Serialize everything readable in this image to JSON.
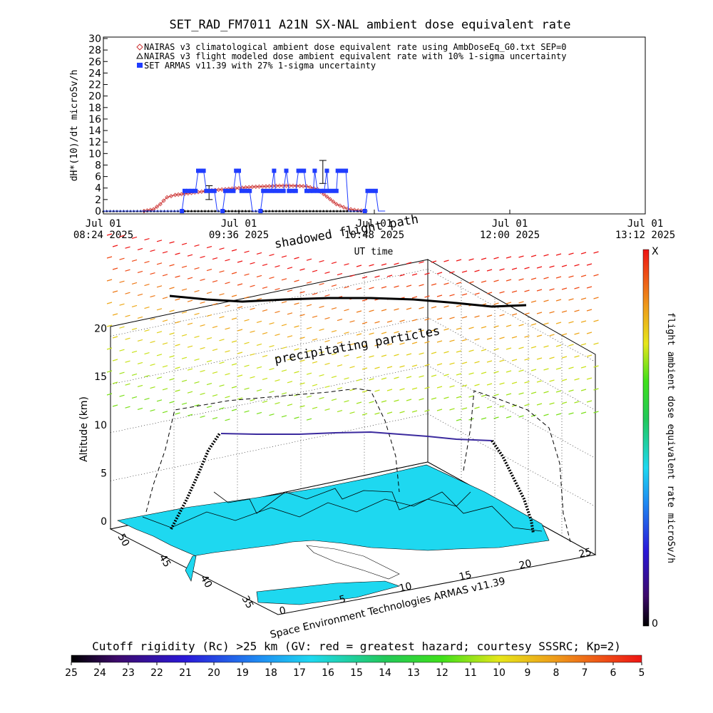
{
  "chart_data": [
    {
      "type": "line",
      "title": "SET_RAD_FM7011  A21N SX-NAL ambient dose equivalent rate",
      "xlabel": "UT time",
      "ylabel": "dH*(10)/dt microSv/h",
      "ylim": [
        0,
        30
      ],
      "yticks": [
        "0",
        "2",
        "4",
        "6",
        "8",
        "10",
        "12",
        "14",
        "16",
        "18",
        "20",
        "22",
        "24",
        "26",
        "28",
        "30"
      ],
      "xticks": [
        {
          "day": "Jul 01",
          "time": "08:24 2025"
        },
        {
          "day": "Jul 01",
          "time": "09:36 2025"
        },
        {
          "day": "Jul 01",
          "time": "10:48 2025"
        },
        {
          "day": "Jul 01",
          "time": "12:00 2025"
        },
        {
          "day": "Jul 01",
          "time": "13:12 2025"
        }
      ],
      "legend_position": "top-left",
      "series": [
        {
          "name": "NAIRAS v3 climatological ambient dose equivalent rate using AmbDoseEq_G0.txt SEP=0",
          "marker": "diamond",
          "color": "#cc3333",
          "points": [
            [
              0.3,
              0
            ],
            [
              0.37,
              0.3
            ],
            [
              0.42,
              1.2
            ],
            [
              0.47,
              2.4
            ],
            [
              0.53,
              2.8
            ],
            [
              0.6,
              3.0
            ],
            [
              0.7,
              3.3
            ],
            [
              0.8,
              3.6
            ],
            [
              0.9,
              3.8
            ],
            [
              1.0,
              4.0
            ],
            [
              1.1,
              4.2
            ],
            [
              1.2,
              4.3
            ],
            [
              1.3,
              4.4
            ],
            [
              1.4,
              4.4
            ],
            [
              1.5,
              4.3
            ],
            [
              1.58,
              3.8
            ],
            [
              1.65,
              2.5
            ],
            [
              1.72,
              1.2
            ],
            [
              1.8,
              0.4
            ],
            [
              1.88,
              0.1
            ],
            [
              1.95,
              0
            ]
          ]
        },
        {
          "name": "NAIRAS v3 flight modeled dose ambient equivalent rate with 10% 1-sigma uncertainty",
          "marker": "triangle",
          "color": "#000000",
          "points": [
            [
              0.0,
              0
            ],
            [
              0.5,
              0
            ],
            [
              1.0,
              0
            ],
            [
              1.5,
              0
            ],
            [
              1.95,
              0
            ]
          ],
          "error_bars": [
            [
              0.78,
              3.2,
              1.2
            ],
            [
              1.62,
              6.8,
              2.0
            ]
          ]
        },
        {
          "name": "SET ARMAS v11.39 with 27% 1-sigma uncertainty",
          "marker": "square",
          "color": "#1f3cff",
          "points": [
            [
              0.0,
              0
            ],
            [
              0.58,
              0
            ],
            [
              0.6,
              3.5
            ],
            [
              0.68,
              3.5
            ],
            [
              0.7,
              7
            ],
            [
              0.74,
              7
            ],
            [
              0.76,
              3.5
            ],
            [
              0.82,
              3.5
            ],
            [
              0.84,
              0
            ],
            [
              0.88,
              0
            ],
            [
              0.9,
              3.5
            ],
            [
              0.96,
              3.5
            ],
            [
              0.98,
              7
            ],
            [
              1.0,
              7
            ],
            [
              1.02,
              3.5
            ],
            [
              1.08,
              3.5
            ],
            [
              1.1,
              0
            ],
            [
              1.16,
              0
            ],
            [
              1.18,
              3.5
            ],
            [
              1.24,
              3.5
            ],
            [
              1.26,
              7
            ],
            [
              1.27,
              3.5
            ],
            [
              1.33,
              3.5
            ],
            [
              1.35,
              7
            ],
            [
              1.37,
              3.5
            ],
            [
              1.42,
              3.5
            ],
            [
              1.44,
              7
            ],
            [
              1.48,
              7
            ],
            [
              1.5,
              3.5
            ],
            [
              1.55,
              3.5
            ],
            [
              1.56,
              7
            ],
            [
              1.58,
              3.5
            ],
            [
              1.63,
              3.5
            ],
            [
              1.65,
              7
            ],
            [
              1.66,
              3.5
            ],
            [
              1.72,
              3.5
            ],
            [
              1.73,
              7
            ],
            [
              1.79,
              7
            ],
            [
              1.81,
              0
            ],
            [
              1.93,
              0
            ],
            [
              1.95,
              3.5
            ],
            [
              2.01,
              3.5
            ],
            [
              2.03,
              0
            ],
            [
              2.08,
              0
            ]
          ]
        }
      ]
    },
    {
      "type": "scatter",
      "title": "",
      "zlabel": "Altitude (km)",
      "zticks": [
        "0",
        "5",
        "10",
        "15",
        "20"
      ],
      "lat_ticks": [
        "50",
        "45",
        "40",
        "35"
      ],
      "lon_ticks": [
        "0",
        "5",
        "10",
        "15",
        "20",
        "25"
      ],
      "annotations": [
        "shadowed flight path",
        "precipitating particles"
      ],
      "colorbar": {
        "label": "flight ambient dose equivalent rate microSv/h",
        "top_label": "X",
        "bottom_label": "0"
      },
      "credit": "Space Environment Technologies ARMAS v11.39"
    },
    {
      "type": "heatmap",
      "title": "Cutoff rigidity (Rc) >25 km (GV: red = greatest hazard; courtesy SSSRC; Kp=2)",
      "tick_labels": [
        "25",
        "24",
        "23",
        "22",
        "21",
        "20",
        "19",
        "18",
        "17",
        "16",
        "15",
        "14",
        "13",
        "12",
        "11",
        "10",
        "9",
        "8",
        "7",
        "6",
        "5"
      ]
    }
  ],
  "colors": {
    "nairas_climatological": "#cc3333",
    "armas": "#1f3cff",
    "map_land": "#1ed8f0",
    "flight_path_shadow": "#000000",
    "flight_path": "#3b2a9e"
  }
}
